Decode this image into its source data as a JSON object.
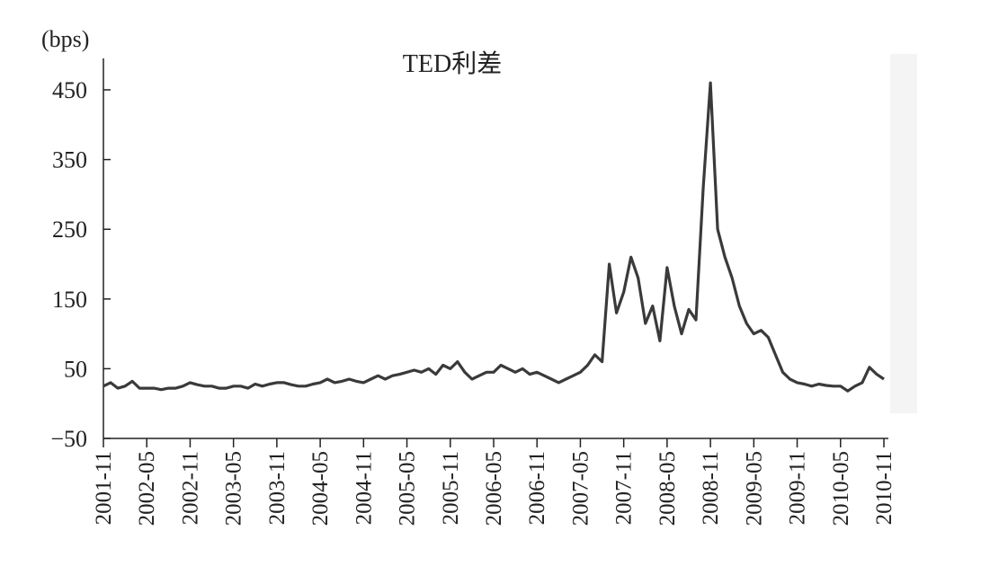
{
  "chart_data": {
    "type": "line",
    "title": "TED利差",
    "ylabel": "(bps)",
    "xlabel": "",
    "ylim": [
      -50,
      450
    ],
    "yticks": [
      -50,
      50,
      150,
      250,
      350,
      450
    ],
    "ytick_labels": [
      "−50",
      "50",
      "150",
      "250",
      "350",
      "450"
    ],
    "xticks": [
      "2001-11",
      "2002-05",
      "2002-11",
      "2003-05",
      "2003-11",
      "2004-05",
      "2004-11",
      "2005-05",
      "2005-11",
      "2006-05",
      "2006-11",
      "2007-05",
      "2007-11",
      "2008-05",
      "2008-11",
      "2009-05",
      "2009-11",
      "2010-05",
      "2010-11"
    ],
    "xlim": [
      "2001-11",
      "2010-11"
    ],
    "grid": false,
    "line_color": "#3a3a3a",
    "series": [
      {
        "x": [
          "2001-11",
          "2001-12",
          "2002-01",
          "2002-02",
          "2002-03",
          "2002-04",
          "2002-05",
          "2002-06",
          "2002-07",
          "2002-08",
          "2002-09",
          "2002-10",
          "2002-11",
          "2002-12",
          "2003-01",
          "2003-02",
          "2003-03",
          "2003-04",
          "2003-05",
          "2003-06",
          "2003-07",
          "2003-08",
          "2003-09",
          "2003-10",
          "2003-11",
          "2003-12",
          "2004-01",
          "2004-02",
          "2004-03",
          "2004-04",
          "2004-05",
          "2004-06",
          "2004-07",
          "2004-08",
          "2004-09",
          "2004-10",
          "2004-11",
          "2004-12",
          "2005-01",
          "2005-02",
          "2005-03",
          "2005-04",
          "2005-05",
          "2005-06",
          "2005-07",
          "2005-08",
          "2005-09",
          "2005-10",
          "2005-11",
          "2005-12",
          "2006-01",
          "2006-02",
          "2006-03",
          "2006-04",
          "2006-05",
          "2006-06",
          "2006-07",
          "2006-08",
          "2006-09",
          "2006-10",
          "2006-11",
          "2006-12",
          "2007-01",
          "2007-02",
          "2007-03",
          "2007-04",
          "2007-05",
          "2007-06",
          "2007-07",
          "2007-08",
          "2007-09",
          "2007-10",
          "2007-11",
          "2007-12",
          "2008-01",
          "2008-02",
          "2008-03",
          "2008-04",
          "2008-05",
          "2008-06",
          "2008-07",
          "2008-08",
          "2008-09",
          "2008-10",
          "2008-11",
          "2008-12",
          "2009-01",
          "2009-02",
          "2009-03",
          "2009-04",
          "2009-05",
          "2009-06",
          "2009-07",
          "2009-08",
          "2009-09",
          "2009-10",
          "2009-11",
          "2009-12",
          "2010-01",
          "2010-02",
          "2010-03",
          "2010-04",
          "2010-05",
          "2010-06",
          "2010-07",
          "2010-08",
          "2010-09",
          "2010-10",
          "2010-11"
        ],
        "values": [
          25,
          30,
          22,
          25,
          32,
          22,
          22,
          22,
          20,
          22,
          22,
          25,
          30,
          27,
          25,
          25,
          22,
          22,
          25,
          25,
          22,
          28,
          25,
          28,
          30,
          30,
          27,
          25,
          25,
          28,
          30,
          35,
          30,
          32,
          35,
          32,
          30,
          35,
          40,
          35,
          40,
          42,
          45,
          48,
          45,
          50,
          42,
          55,
          50,
          60,
          45,
          35,
          40,
          45,
          45,
          55,
          50,
          45,
          50,
          42,
          45,
          40,
          35,
          30,
          35,
          40,
          45,
          55,
          70,
          60,
          200,
          130,
          160,
          210,
          180,
          115,
          140,
          90,
          195,
          140,
          100,
          135,
          120,
          310,
          460,
          250,
          210,
          180,
          140,
          115,
          100,
          105,
          95,
          70,
          45,
          35,
          30,
          28,
          25,
          28,
          26,
          25,
          25,
          18,
          25,
          30,
          52,
          42,
          35
        ]
      }
    ]
  }
}
